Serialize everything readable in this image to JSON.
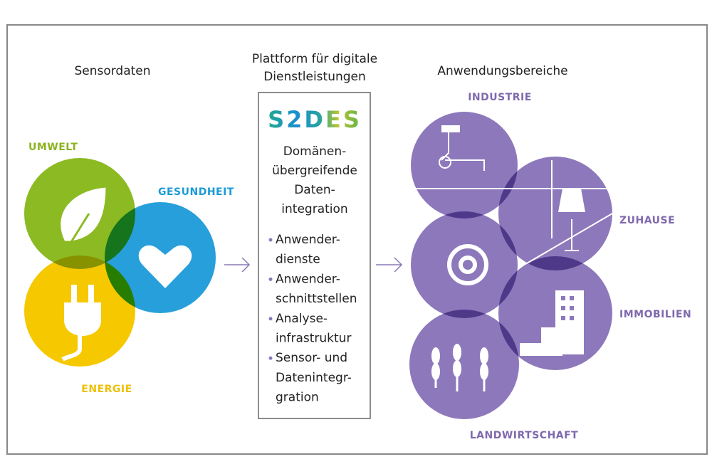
{
  "sensors": {
    "heading": "Sensordaten",
    "labels": [
      "UMWELT",
      "GESUNDHEIT",
      "ENERGIE"
    ]
  },
  "platform": {
    "heading": [
      "Plattform für digitale",
      "Dienstleistungen"
    ],
    "logo": "S2DES",
    "description": [
      "Domänen-",
      "übergreifende",
      "Daten-",
      "integration"
    ],
    "bullets": [
      [
        "Anwender-",
        "dienste"
      ],
      [
        "Anwender-",
        "schnittstellen"
      ],
      [
        "Analyse-",
        "infrastruktur"
      ],
      [
        "Sensor- und",
        "Datenintegr-",
        "gration"
      ]
    ]
  },
  "applications": {
    "heading": "Anwendungsbereiche",
    "labels": [
      "INDUSTRIE",
      "ZUHAUSE",
      "IMMOBILIEN",
      "LANDWIRTSCHAFT"
    ]
  }
}
